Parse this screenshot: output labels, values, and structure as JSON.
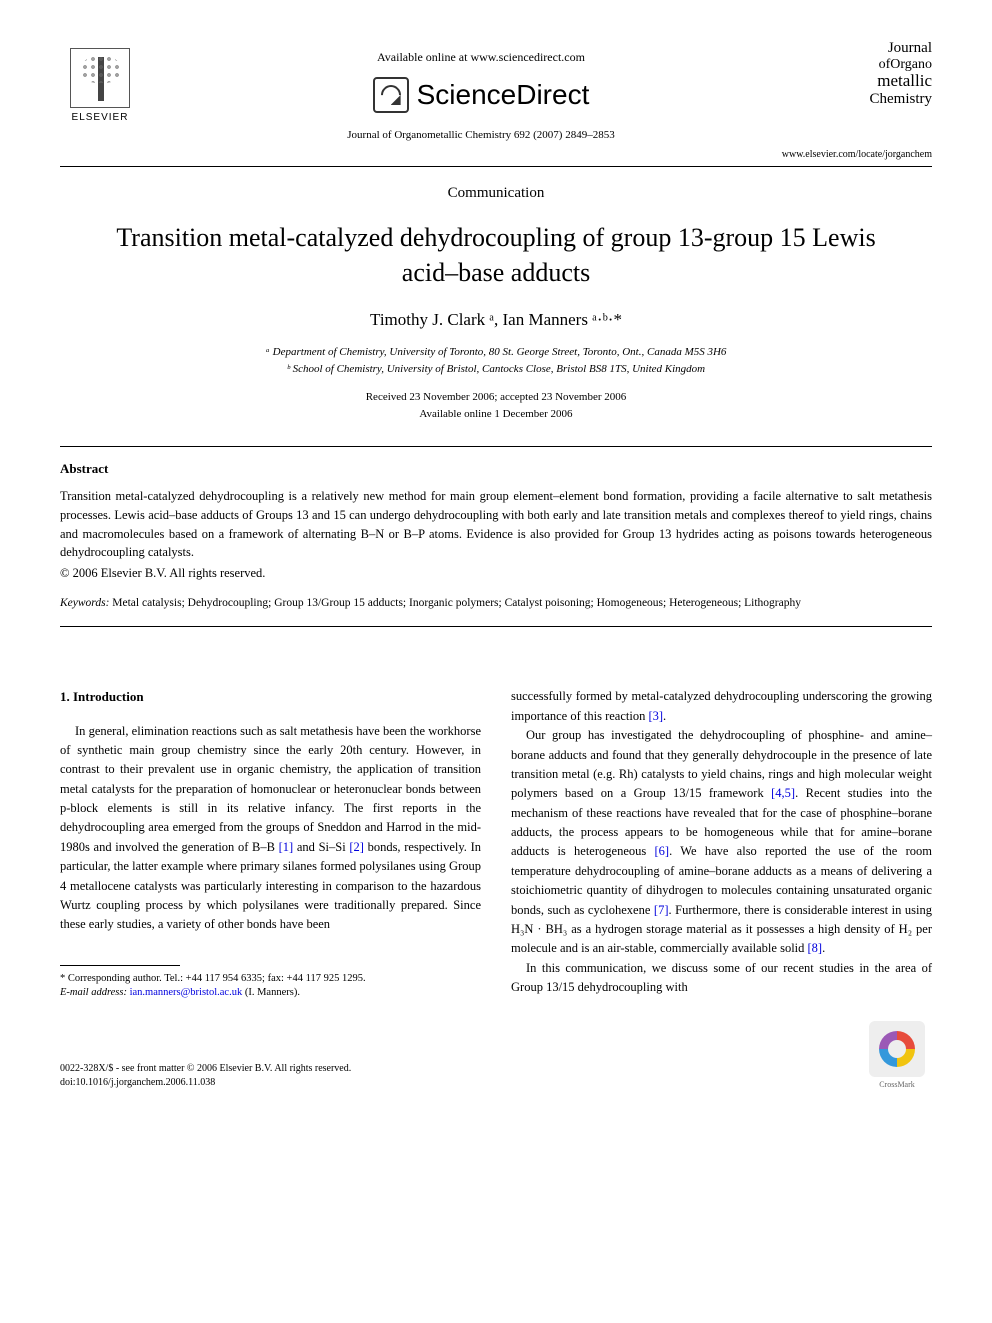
{
  "header": {
    "elsevier_label": "ELSEVIER",
    "available_online": "Available online at www.sciencedirect.com",
    "sciencedirect": "ScienceDirect",
    "journal_ref": "Journal of Organometallic Chemistry 692 (2007) 2849–2853",
    "journal_logo_l1": "Journal",
    "journal_logo_l2": "ofOrgano",
    "journal_logo_l3": "metallic",
    "journal_logo_l4": "Chemistry",
    "url": "www.elsevier.com/locate/jorganchem"
  },
  "article": {
    "type_label": "Communication",
    "title": "Transition metal-catalyzed dehydrocoupling of group 13-group 15 Lewis acid–base adducts",
    "authors_html": "Timothy J. Clark ᵃ, Ian Manners ᵃ·ᵇ·*",
    "affil_a": "ᵃ Department of Chemistry, University of Toronto, 80 St. George Street, Toronto, Ont., Canada M5S 3H6",
    "affil_b": "ᵇ School of Chemistry, University of Bristol, Cantocks Close, Bristol BS8 1TS, United Kingdom",
    "received": "Received 23 November 2006; accepted 23 November 2006",
    "online": "Available online 1 December 2006"
  },
  "abstract": {
    "heading": "Abstract",
    "text": "Transition metal-catalyzed dehydrocoupling is a relatively new method for main group element–element bond formation, providing a facile alternative to salt metathesis processes. Lewis acid–base adducts of Groups 13 and 15 can undergo dehydrocoupling with both early and late transition metals and complexes thereof to yield rings, chains and macromolecules based on a framework of alternating B–N or B–P atoms. Evidence is also provided for Group 13 hydrides acting as poisons towards heterogeneous dehydrocoupling catalysts.",
    "copyright": "© 2006 Elsevier B.V. All rights reserved."
  },
  "keywords": {
    "label": "Keywords:",
    "text": " Metal catalysis; Dehydrocoupling; Group 13/Group 15 adducts; Inorganic polymers; Catalyst poisoning; Homogeneous; Heterogeneous; Lithography"
  },
  "body": {
    "section_heading": "1. Introduction",
    "left_p1a": "In general, elimination reactions such as salt metathesis have been the workhorse of synthetic main group chemistry since the early 20th century. However, in contrast to their prevalent use in organic chemistry, the application of transition metal catalysts for the preparation of homonuclear or heteronuclear bonds between p-block elements is still in its relative infancy. The first reports in the dehydrocoupling area emerged from the groups of Sneddon and Harrod in the mid-1980s and involved the generation of B–B ",
    "ref1": "[1]",
    "left_p1b": " and Si–Si ",
    "ref2": "[2]",
    "left_p1c": " bonds, respectively. In particular, the latter example where primary silanes formed polysilanes using Group 4 metallocene catalysts was particularly interesting in comparison to the hazardous Wurtz coupling process by which polysilanes were traditionally prepared. Since these early studies, a variety of other bonds have been",
    "right_p1a": "successfully formed by metal-catalyzed dehydrocoupling underscoring the growing importance of this reaction ",
    "ref3": "[3]",
    "right_p1b": ".",
    "right_p2a": "Our group has investigated the dehydrocoupling of phosphine- and amine–borane adducts and found that they generally dehydrocouple in the presence of late transition metal (e.g. Rh) catalysts to yield chains, rings and high molecular weight polymers based on a Group 13/15 framework ",
    "ref45": "[4,5]",
    "right_p2b": ". Recent studies into the mechanism of these reactions have revealed that for the case of phosphine–borane adducts, the process appears to be homogeneous while that for amine–borane adducts is heterogeneous ",
    "ref6": "[6]",
    "right_p2c": ". We have also reported the use of the room temperature dehydrocoupling of amine–borane adducts as a means of delivering a stoichiometric quantity of dihydrogen to molecules containing unsaturated organic bonds, such as cyclohexene ",
    "ref7": "[7]",
    "right_p2d": ". Furthermore, there is considerable interest in using H₃N · BH₃ as a hydrogen storage material as it possesses a high density of H₂ per molecule and is an air-stable, commercially available solid ",
    "ref8": "[8]",
    "right_p2e": ".",
    "right_p3": "In this communication, we discuss some of our recent studies in the area of Group 13/15 dehydrocoupling with"
  },
  "footnote": {
    "corr": "* Corresponding author. Tel.: +44 117 954 6335; fax: +44 117 925 1295.",
    "email_label": "E-mail address: ",
    "email": "ian.manners@bristol.ac.uk",
    "email_tail": " (I. Manners)."
  },
  "footer": {
    "issn": "0022-328X/$ - see front matter © 2006 Elsevier B.V. All rights reserved.",
    "doi": "doi:10.1016/j.jorganchem.2006.11.038",
    "crossmark": "CrossMark"
  },
  "colors": {
    "link": "#0000dd",
    "text": "#000000",
    "bg": "#ffffff"
  }
}
